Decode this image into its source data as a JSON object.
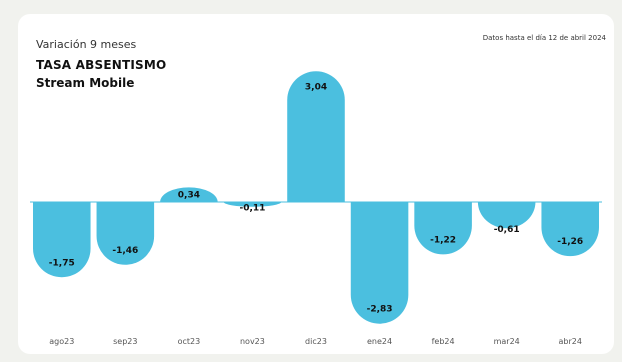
{
  "header": {
    "subtitle": "Variación 9 meses",
    "title": "TASA ABSENTISMO",
    "title_line2": "Stream Mobile",
    "note": "Datos hasta el día 12 de abril 2024"
  },
  "colors": {
    "bar": "#4bbfdf",
    "baseline": "#4bbfdf",
    "card": "#ffffff",
    "background": "#f1f2ee"
  },
  "chart_data": {
    "type": "bar",
    "categories": [
      "ago23",
      "sep23",
      "oct23",
      "nov23",
      "dic23",
      "ene24",
      "feb24",
      "mar24",
      "abr24"
    ],
    "values": [
      -1.75,
      -1.46,
      0.34,
      -0.11,
      3.04,
      -2.83,
      -1.22,
      -0.61,
      -1.26
    ],
    "value_labels": [
      "-1,75",
      "-1,46",
      "0,34",
      "-0,11",
      "3,04",
      "-2,83",
      "-1,22",
      "-0,61",
      "-1,26"
    ],
    "title": "TASA ABSENTISMO",
    "subtitle": "Variación 9 meses",
    "ylim": [
      -3.2,
      3.2
    ],
    "grid": false,
    "legend": "none"
  }
}
